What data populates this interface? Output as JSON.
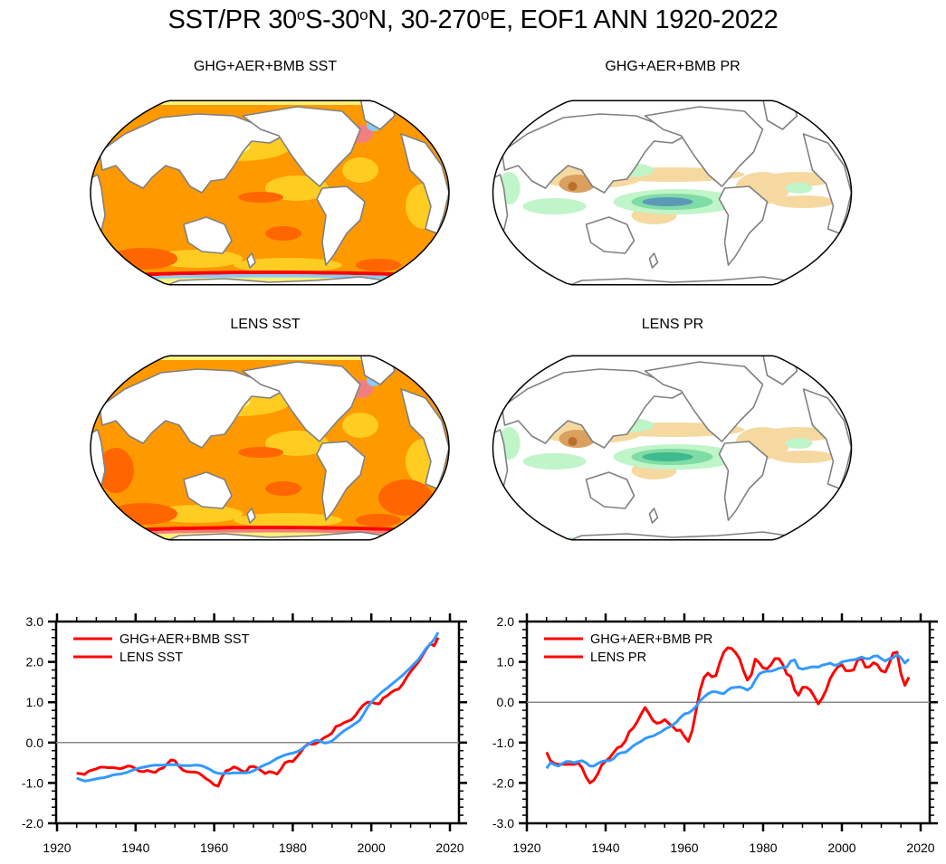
{
  "figure": {
    "title_parts": {
      "prefix": "SST/PR 30",
      "deg1": "o",
      "mid1": "S-30",
      "deg2": "o",
      "mid2": "N, 30-270",
      "deg3": "o",
      "suffix": "E, EOF1 ANN 1920-2022"
    },
    "maps": [
      {
        "title": "GHG+AER+BMB SST",
        "variable": "SST",
        "palette": "warm"
      },
      {
        "title": "GHG+AER+BMB PR",
        "variable": "PR",
        "palette": "brown-green"
      },
      {
        "title": "LENS SST",
        "variable": "SST",
        "palette": "warm"
      },
      {
        "title": "LENS PR",
        "variable": "PR",
        "palette": "brown-green"
      }
    ],
    "colors": {
      "series_red": "#ff0000",
      "series_blue": "#3399ff",
      "zero_line": "#888888",
      "coast": "#808080",
      "sst_light_yellow": "#fff07a",
      "sst_yellow": "#ffcc22",
      "sst_orange": "#ff9900",
      "sst_dark_orange": "#ff6600",
      "sst_red": "#ff0000",
      "sst_pink": "#f08080",
      "sst_light_blue": "#88ccff",
      "pr_tan": "#f5d9a0",
      "pr_brown": "#d9a060",
      "pr_dark_brown": "#b8702a",
      "pr_light_green": "#bff5c8",
      "pr_green": "#7fdca5",
      "pr_teal": "#40b890",
      "pr_steel": "#5a9ab8"
    }
  },
  "chart_data": [
    {
      "type": "line",
      "title": "",
      "xlabel": "",
      "ylabel": "",
      "xlim": [
        1918,
        2023
      ],
      "ylim": [
        -2.0,
        3.0
      ],
      "x_ticks": [
        1920,
        1940,
        1960,
        1980,
        2000,
        2020
      ],
      "x_tick_labels": [
        "1920",
        "1940",
        "1960",
        "1980",
        "2000",
        "2020"
      ],
      "y_ticks": [
        -2.0,
        -1.0,
        0.0,
        1.0,
        2.0,
        3.0
      ],
      "y_tick_labels": [
        "-2.0",
        "-1.0",
        "0.0",
        "1.0",
        "2.0",
        "3.0"
      ],
      "grid": false,
      "reference_line": 0.0,
      "legend_position": "top-left",
      "x": [
        1925,
        1926,
        1927,
        1928,
        1929,
        1930,
        1931,
        1932,
        1933,
        1934,
        1935,
        1936,
        1937,
        1938,
        1939,
        1940,
        1941,
        1942,
        1943,
        1944,
        1945,
        1946,
        1947,
        1948,
        1949,
        1950,
        1951,
        1952,
        1953,
        1954,
        1955,
        1956,
        1957,
        1958,
        1959,
        1960,
        1961,
        1962,
        1963,
        1964,
        1965,
        1966,
        1967,
        1968,
        1969,
        1970,
        1971,
        1972,
        1973,
        1974,
        1975,
        1976,
        1977,
        1978,
        1979,
        1980,
        1981,
        1982,
        1983,
        1984,
        1985,
        1986,
        1987,
        1988,
        1989,
        1990,
        1991,
        1992,
        1993,
        1994,
        1995,
        1996,
        1997,
        1998,
        1999,
        2000,
        2001,
        2002,
        2003,
        2004,
        2005,
        2006,
        2007,
        2008,
        2009,
        2010,
        2011,
        2012,
        2013,
        2014,
        2015,
        2016,
        2017
      ],
      "series": [
        {
          "name": "GHG+AER+BMB SST",
          "legend_label": "GHG+AER+BMB SST",
          "color": "#ff0000",
          "values": [
            -0.76,
            -0.77,
            -0.79,
            -0.71,
            -0.68,
            -0.65,
            -0.61,
            -0.61,
            -0.62,
            -0.62,
            -0.63,
            -0.65,
            -0.62,
            -0.58,
            -0.59,
            -0.65,
            -0.71,
            -0.72,
            -0.69,
            -0.72,
            -0.74,
            -0.66,
            -0.63,
            -0.53,
            -0.43,
            -0.45,
            -0.58,
            -0.68,
            -0.72,
            -0.73,
            -0.73,
            -0.75,
            -0.82,
            -0.9,
            -0.96,
            -1.05,
            -1.08,
            -0.85,
            -0.7,
            -0.67,
            -0.6,
            -0.64,
            -0.7,
            -0.74,
            -0.6,
            -0.59,
            -0.63,
            -0.7,
            -0.77,
            -0.72,
            -0.74,
            -0.78,
            -0.66,
            -0.5,
            -0.46,
            -0.47,
            -0.36,
            -0.24,
            -0.1,
            -0.03,
            -0.04,
            -0.02,
            0.05,
            0.12,
            0.17,
            0.24,
            0.4,
            0.43,
            0.49,
            0.53,
            0.57,
            0.68,
            0.82,
            0.93,
            1.0,
            1.0,
            0.97,
            0.96,
            1.1,
            1.16,
            1.24,
            1.3,
            1.33,
            1.45,
            1.62,
            1.76,
            1.88,
            2.0,
            2.16,
            2.32,
            2.45,
            2.4,
            2.6
          ]
        },
        {
          "name": "LENS SST",
          "legend_label": "LENS SST",
          "color": "#3399ff",
          "values": [
            -0.88,
            -0.92,
            -0.95,
            -0.94,
            -0.92,
            -0.9,
            -0.88,
            -0.87,
            -0.84,
            -0.81,
            -0.79,
            -0.78,
            -0.76,
            -0.73,
            -0.69,
            -0.66,
            -0.63,
            -0.61,
            -0.59,
            -0.57,
            -0.56,
            -0.56,
            -0.56,
            -0.55,
            -0.55,
            -0.55,
            -0.56,
            -0.57,
            -0.57,
            -0.57,
            -0.56,
            -0.56,
            -0.58,
            -0.62,
            -0.67,
            -0.73,
            -0.76,
            -0.77,
            -0.76,
            -0.76,
            -0.75,
            -0.75,
            -0.75,
            -0.75,
            -0.74,
            -0.7,
            -0.65,
            -0.59,
            -0.55,
            -0.51,
            -0.45,
            -0.39,
            -0.35,
            -0.31,
            -0.28,
            -0.26,
            -0.23,
            -0.18,
            -0.11,
            -0.04,
            0.02,
            0.06,
            0.04,
            -0.01,
            0.0,
            0.04,
            0.12,
            0.21,
            0.29,
            0.35,
            0.41,
            0.48,
            0.55,
            0.7,
            0.87,
            1.0,
            1.1,
            1.19,
            1.28,
            1.35,
            1.43,
            1.51,
            1.59,
            1.67,
            1.77,
            1.86,
            1.96,
            2.06,
            2.2,
            2.34,
            2.44,
            2.56,
            2.73
          ]
        }
      ]
    },
    {
      "type": "line",
      "title": "",
      "xlabel": "",
      "ylabel": "",
      "xlim": [
        1918,
        2023
      ],
      "ylim": [
        -3.0,
        2.0
      ],
      "x_ticks": [
        1920,
        1940,
        1960,
        1980,
        2000,
        2020
      ],
      "x_tick_labels": [
        "1920",
        "1940",
        "1960",
        "1980",
        "2000",
        "2020"
      ],
      "y_ticks": [
        -3.0,
        -2.0,
        -1.0,
        0.0,
        1.0,
        2.0
      ],
      "y_tick_labels": [
        "-3.0",
        "-2.0",
        "-1.0",
        "0.0",
        "1.0",
        "2.0"
      ],
      "grid": false,
      "reference_line": 0.0,
      "legend_position": "top-left",
      "x": [
        1925,
        1926,
        1927,
        1928,
        1929,
        1930,
        1931,
        1932,
        1933,
        1934,
        1935,
        1936,
        1937,
        1938,
        1939,
        1940,
        1941,
        1942,
        1943,
        1944,
        1945,
        1946,
        1947,
        1948,
        1949,
        1950,
        1951,
        1952,
        1953,
        1954,
        1955,
        1956,
        1957,
        1958,
        1959,
        1960,
        1961,
        1962,
        1963,
        1964,
        1965,
        1966,
        1967,
        1968,
        1969,
        1970,
        1971,
        1972,
        1973,
        1974,
        1975,
        1976,
        1977,
        1978,
        1979,
        1980,
        1981,
        1982,
        1983,
        1984,
        1985,
        1986,
        1987,
        1988,
        1989,
        1990,
        1991,
        1992,
        1993,
        1994,
        1995,
        1996,
        1997,
        1998,
        1999,
        2000,
        2001,
        2002,
        2003,
        2004,
        2005,
        2006,
        2007,
        2008,
        2009,
        2010,
        2011,
        2012,
        2013,
        2014,
        2015,
        2016,
        2017
      ],
      "series": [
        {
          "name": "GHG+AER+BMB PR",
          "legend_label": "GHG+AER+BMB PR",
          "color": "#ff0000",
          "values": [
            -1.24,
            -1.45,
            -1.52,
            -1.54,
            -1.54,
            -1.54,
            -1.54,
            -1.54,
            -1.5,
            -1.62,
            -1.85,
            -2.0,
            -1.93,
            -1.78,
            -1.56,
            -1.46,
            -1.38,
            -1.25,
            -1.13,
            -1.09,
            -0.96,
            -0.73,
            -0.64,
            -0.49,
            -0.3,
            -0.13,
            -0.28,
            -0.45,
            -0.52,
            -0.5,
            -0.43,
            -0.52,
            -0.6,
            -0.7,
            -0.69,
            -0.85,
            -0.97,
            -0.7,
            -0.2,
            0.3,
            0.62,
            0.72,
            0.63,
            0.66,
            0.98,
            1.24,
            1.35,
            1.33,
            1.23,
            1.08,
            0.78,
            0.55,
            0.68,
            1.07,
            0.98,
            0.85,
            0.83,
            0.93,
            1.08,
            1.08,
            0.93,
            0.7,
            0.64,
            0.3,
            0.17,
            0.37,
            0.37,
            0.3,
            0.14,
            -0.04,
            0.1,
            0.3,
            0.58,
            0.75,
            0.88,
            0.93,
            0.78,
            0.78,
            0.8,
            1.05,
            1.08,
            0.87,
            0.88,
            0.98,
            0.93,
            0.78,
            0.75,
            0.95,
            1.22,
            1.24,
            0.7,
            0.42,
            0.62
          ]
        },
        {
          "name": "LENS PR",
          "legend_label": "LENS PR",
          "color": "#3399ff",
          "values": [
            -1.64,
            -1.5,
            -1.55,
            -1.58,
            -1.52,
            -1.47,
            -1.47,
            -1.5,
            -1.47,
            -1.45,
            -1.5,
            -1.58,
            -1.58,
            -1.52,
            -1.47,
            -1.45,
            -1.45,
            -1.4,
            -1.29,
            -1.25,
            -1.24,
            -1.17,
            -1.08,
            -1.02,
            -0.97,
            -0.9,
            -0.86,
            -0.84,
            -0.79,
            -0.74,
            -0.67,
            -0.62,
            -0.57,
            -0.49,
            -0.38,
            -0.29,
            -0.27,
            -0.2,
            -0.1,
            0.04,
            0.13,
            0.21,
            0.26,
            0.26,
            0.23,
            0.21,
            0.3,
            0.36,
            0.37,
            0.38,
            0.35,
            0.3,
            0.37,
            0.55,
            0.7,
            0.75,
            0.77,
            0.77,
            0.8,
            0.84,
            0.86,
            0.87,
            1.02,
            1.05,
            0.85,
            0.82,
            0.84,
            0.87,
            0.88,
            0.87,
            0.92,
            0.94,
            0.97,
            0.92,
            0.93,
            1.0,
            1.02,
            1.04,
            1.05,
            1.08,
            1.12,
            1.08,
            1.08,
            1.14,
            1.15,
            1.08,
            1.02,
            1.08,
            1.1,
            1.18,
            1.1,
            0.97,
            1.07
          ]
        }
      ]
    }
  ]
}
